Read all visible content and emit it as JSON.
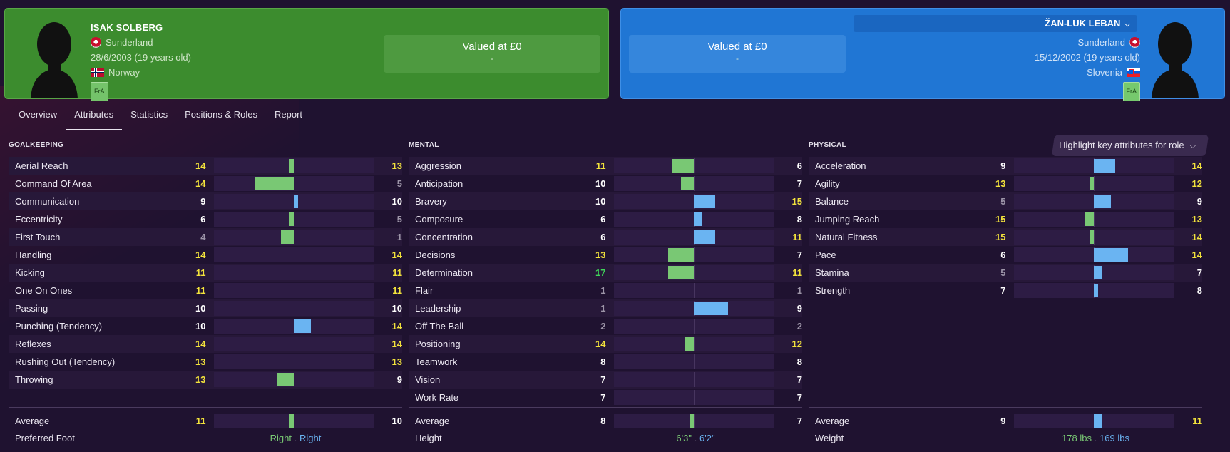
{
  "left_player": {
    "name": "ISAK SOLBERG",
    "club": "Sunderland",
    "dob": "28/6/2003 (19 years old)",
    "nation": "Norway",
    "tag": "FrA",
    "value_title": "Valued at £0",
    "value_sub": "-"
  },
  "right_player": {
    "name": "ŽAN-LUK LEBAN",
    "club": "Sunderland",
    "dob": "15/12/2002 (19 years old)",
    "nation": "Slovenia",
    "tag": "FrA",
    "value_title": "Valued at £0",
    "value_sub": "-"
  },
  "tabs": [
    "Overview",
    "Attributes",
    "Statistics",
    "Positions & Roles",
    "Report"
  ],
  "active_tab": "Attributes",
  "highlight_button": "Highlight key attributes for role",
  "sections": [
    {
      "title": "GOALKEEPING",
      "rows": [
        [
          "Aerial Reach",
          14,
          13
        ],
        [
          "Command Of Area",
          14,
          5
        ],
        [
          "Communication",
          9,
          10
        ],
        [
          "Eccentricity",
          6,
          5
        ],
        [
          "First Touch",
          4,
          1
        ],
        [
          "Handling",
          14,
          14
        ],
        [
          "Kicking",
          11,
          11
        ],
        [
          "One On Ones",
          11,
          11
        ],
        [
          "Passing",
          10,
          10
        ],
        [
          "Punching (Tendency)",
          10,
          14
        ],
        [
          "Reflexes",
          14,
          14
        ],
        [
          "Rushing Out (Tendency)",
          13,
          13
        ],
        [
          "Throwing",
          13,
          9
        ]
      ],
      "average": [
        "Average",
        11,
        10
      ],
      "footer": {
        "label": "Preferred Foot",
        "v1": "Right",
        "v2": "Right"
      }
    },
    {
      "title": "MENTAL",
      "rows": [
        [
          "Aggression",
          11,
          6
        ],
        [
          "Anticipation",
          10,
          7
        ],
        [
          "Bravery",
          10,
          15
        ],
        [
          "Composure",
          6,
          8
        ],
        [
          "Concentration",
          6,
          11
        ],
        [
          "Decisions",
          13,
          7
        ],
        [
          "Determination",
          17,
          11
        ],
        [
          "Flair",
          1,
          1
        ],
        [
          "Leadership",
          1,
          9
        ],
        [
          "Off The Ball",
          2,
          2
        ],
        [
          "Positioning",
          14,
          12
        ],
        [
          "Teamwork",
          8,
          8
        ],
        [
          "Vision",
          7,
          7
        ],
        [
          "Work Rate",
          7,
          7
        ]
      ],
      "average": [
        "Average",
        8,
        7
      ],
      "footer": {
        "label": "Height",
        "v1": "6'3\"",
        "v2": "6'2\""
      }
    },
    {
      "title": "PHYSICAL",
      "rows": [
        [
          "Acceleration",
          9,
          14
        ],
        [
          "Agility",
          13,
          12
        ],
        [
          "Balance",
          5,
          9
        ],
        [
          "Jumping Reach",
          15,
          13
        ],
        [
          "Natural Fitness",
          15,
          14
        ],
        [
          "Pace",
          6,
          14
        ],
        [
          "Stamina",
          5,
          7
        ],
        [
          "Strength",
          7,
          8
        ]
      ],
      "average": [
        "Average",
        9,
        11
      ],
      "footer": {
        "label": "Weight",
        "v1": "178 lbs",
        "v2": "169 lbs"
      }
    }
  ],
  "colors": {
    "left_accent": "#79c874",
    "right_accent": "#6ab4f2",
    "high_value": "#f3e33c",
    "elite_value": "#3fd659",
    "low_value": "#9d95a8"
  }
}
